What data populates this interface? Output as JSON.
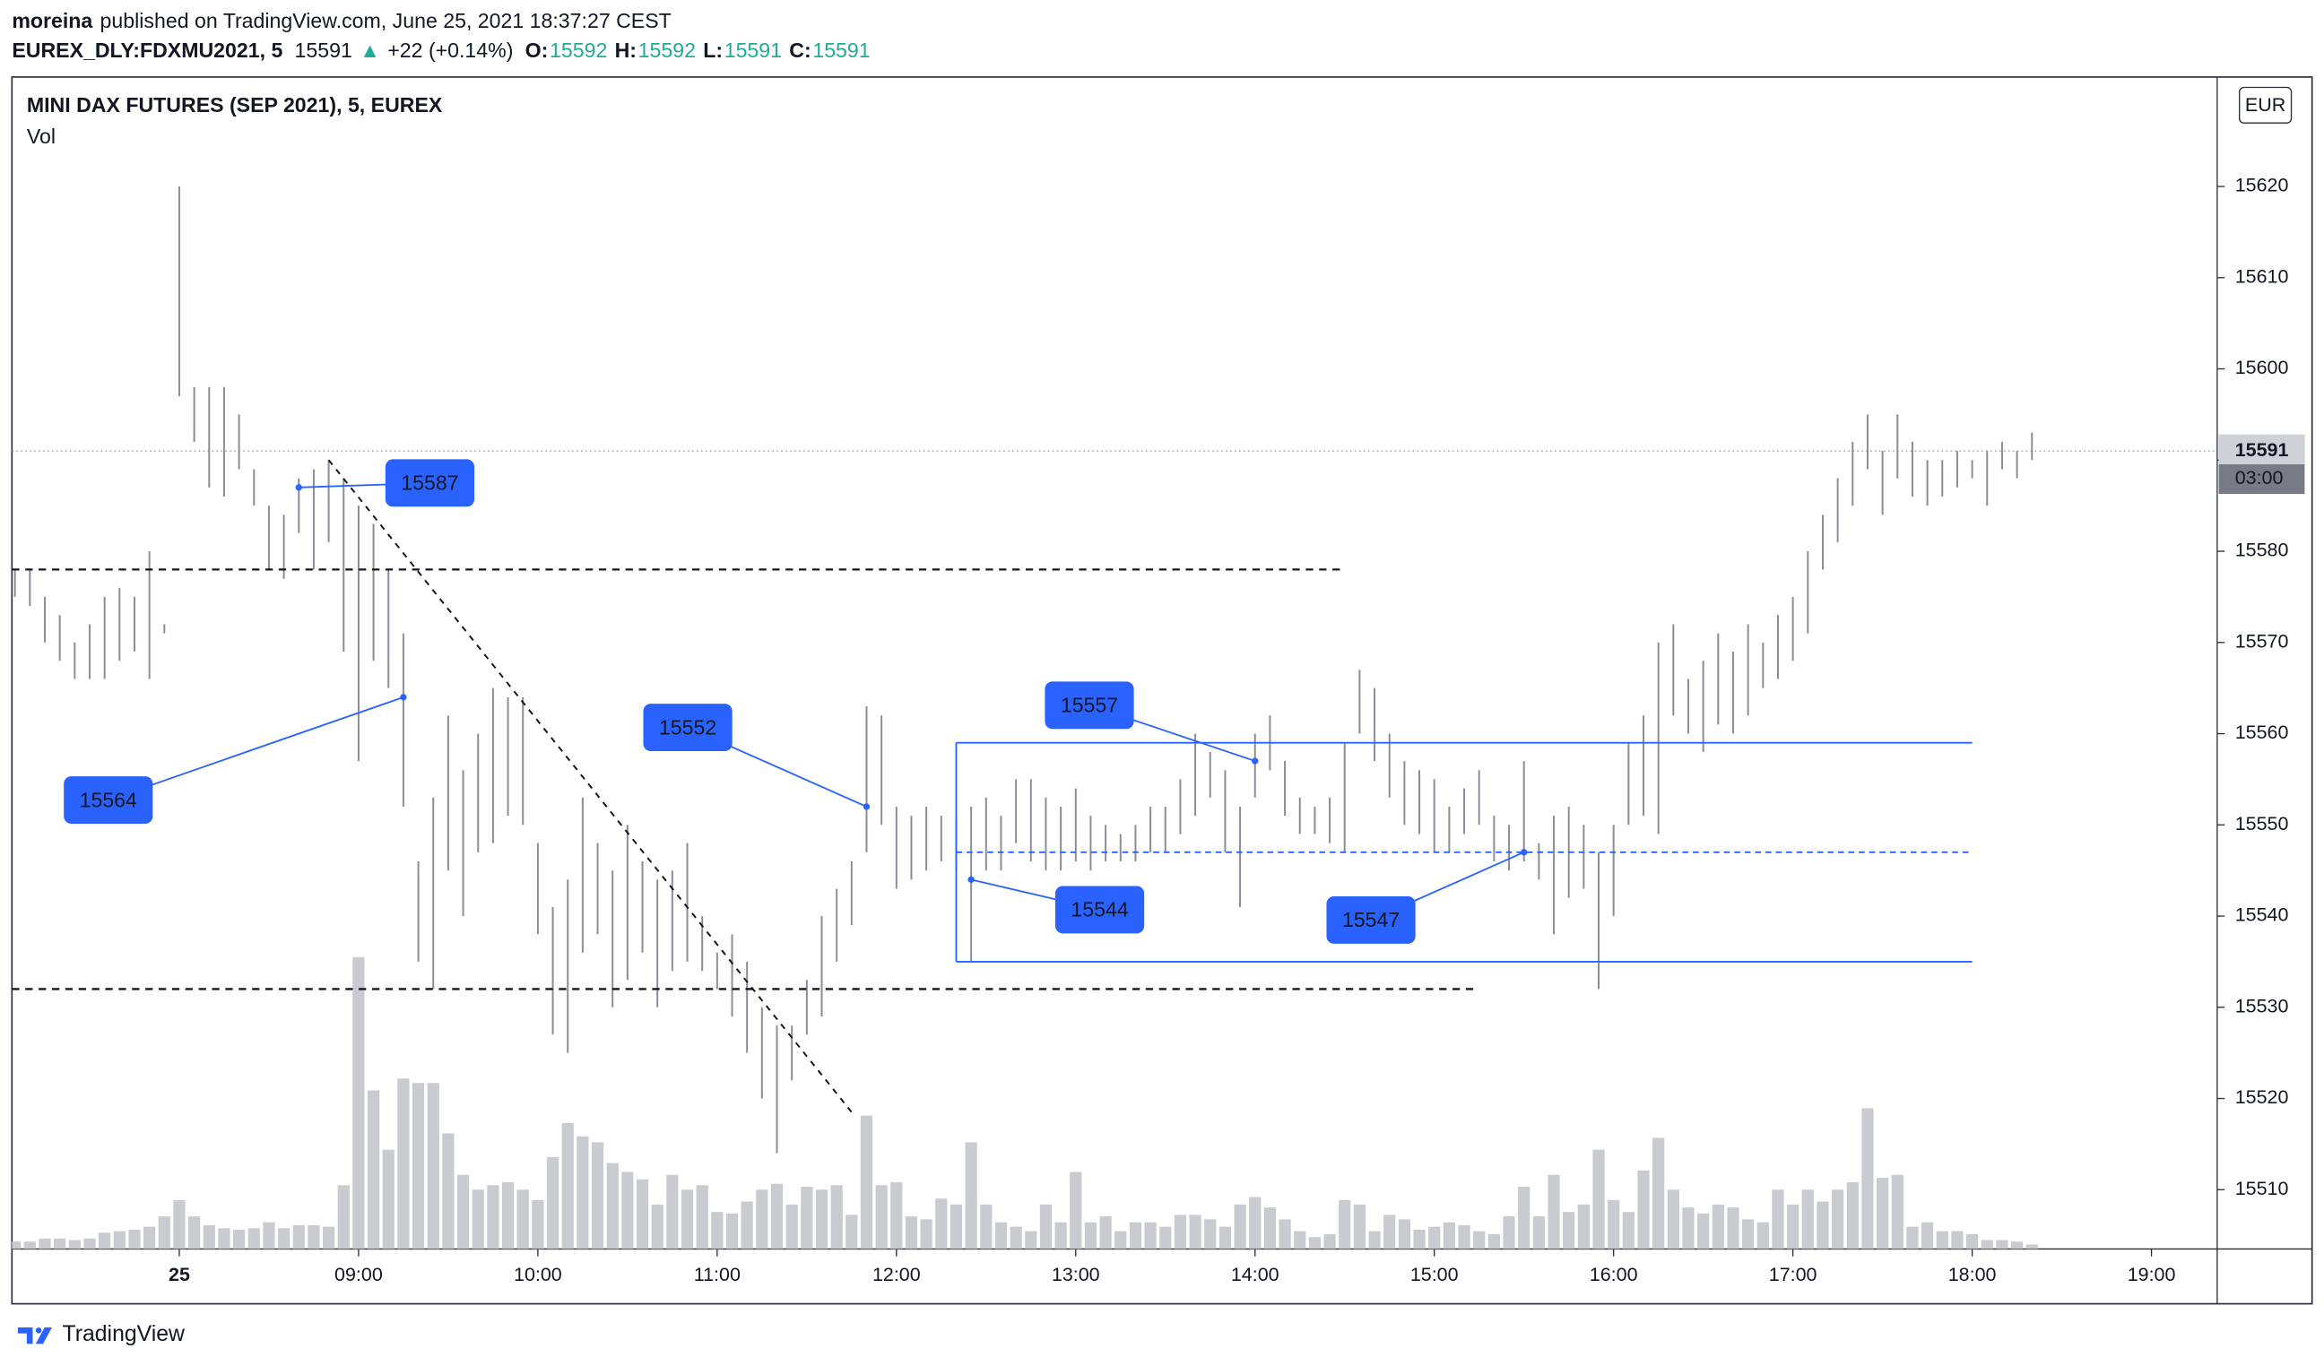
{
  "chart_data": {
    "type": "ohlc",
    "header": {
      "author": "moreina",
      "published": "published on TradingView.com, June 25, 2021 18:37:27 CEST"
    },
    "symbol": "EUREX_DLY:FDXMU2021, 5",
    "last": 15591,
    "change_arrow": "▲",
    "change": "+22 (+0.14%)",
    "ohlc_labels": [
      "O:",
      "H:",
      "L:",
      "C:"
    ],
    "ohlc_values": [
      15592,
      15592,
      15591,
      15591
    ],
    "title": "MINI DAX FUTURES (SEP 2021), 5, EUREX",
    "subtitle": "Vol",
    "currency": "EUR",
    "countdown": "03:00",
    "logo_text": "TradingView",
    "bar_color": "#8a8d96",
    "volume_color": "#c9cbd1",
    "drawing_color": "#2962ff",
    "up_color": "#22ab94",
    "x": [
      "07:05",
      "07:10",
      "07:15",
      "07:20",
      "07:25",
      "07:30",
      "07:35",
      "07:40",
      "07:45",
      "07:50",
      "07:55",
      "08:00",
      "08:05",
      "08:10",
      "08:15",
      "08:20",
      "08:25",
      "08:30",
      "08:35",
      "08:40",
      "08:45",
      "08:50",
      "08:55",
      "09:00",
      "09:05",
      "09:10",
      "09:15",
      "09:20",
      "09:25",
      "09:30",
      "09:35",
      "09:40",
      "09:45",
      "09:50",
      "09:55",
      "10:00",
      "10:05",
      "10:10",
      "10:15",
      "10:20",
      "10:25",
      "10:30",
      "10:35",
      "10:40",
      "10:45",
      "10:50",
      "10:55",
      "11:00",
      "11:05",
      "11:10",
      "11:15",
      "11:20",
      "11:25",
      "11:30",
      "11:35",
      "11:40",
      "11:45",
      "11:50",
      "11:55",
      "12:00",
      "12:05",
      "12:10",
      "12:15",
      "12:20",
      "12:25",
      "12:30",
      "12:35",
      "12:40",
      "12:45",
      "12:50",
      "12:55",
      "13:00",
      "13:05",
      "13:10",
      "13:15",
      "13:20",
      "13:25",
      "13:30",
      "13:35",
      "13:40",
      "13:45",
      "13:50",
      "13:55",
      "14:00",
      "14:05",
      "14:10",
      "14:15",
      "14:20",
      "14:25",
      "14:30",
      "14:35",
      "14:40",
      "14:45",
      "14:50",
      "14:55",
      "15:00",
      "15:05",
      "15:10",
      "15:15",
      "15:20",
      "15:25",
      "15:30",
      "15:35",
      "15:40",
      "15:45",
      "15:50",
      "15:55",
      "16:00",
      "16:05",
      "16:10",
      "16:15",
      "16:20",
      "16:25",
      "16:30",
      "16:35",
      "16:40",
      "16:45",
      "16:50",
      "16:55",
      "17:00",
      "17:05",
      "17:10",
      "17:15",
      "17:20",
      "17:25",
      "17:30",
      "17:35",
      "17:40",
      "17:45",
      "17:50",
      "17:55",
      "18:00",
      "18:05",
      "18:10",
      "18:15",
      "18:20"
    ],
    "high": [
      15578,
      15578,
      15575,
      15573,
      15570,
      15572,
      15575,
      15576,
      15575,
      15580,
      15572,
      15620,
      15598,
      15598,
      15598,
      15595,
      15589,
      15585,
      15584,
      15588,
      15589,
      15590,
      15588,
      15585,
      15583,
      15578,
      15571,
      15546,
      15553,
      15562,
      15556,
      15560,
      15565,
      15564,
      15564,
      15548,
      15541,
      15544,
      15553,
      15548,
      15545,
      15550,
      15546,
      15544,
      15545,
      15548,
      15540,
      15536,
      15538,
      15535,
      15530,
      15528,
      15528,
      15533,
      15540,
      15543,
      15546,
      15563,
      15562,
      15552,
      15551,
      15552,
      15551,
      15551,
      15552,
      15553,
      15551,
      15555,
      15555,
      15553,
      15552,
      15554,
      15551,
      15550,
      15549,
      15550,
      15552,
      15552,
      15555,
      15560,
      15558,
      15556,
      15552,
      15560,
      15562,
      15557,
      15553,
      15552,
      15553,
      15559,
      15567,
      15565,
      15560,
      15557,
      15556,
      15555,
      15552,
      15554,
      15556,
      15551,
      15550,
      15557,
      15548,
      15551,
      15552,
      15550,
      15547,
      15550,
      15559,
      15562,
      15570,
      15572,
      15566,
      15568,
      15571,
      15569,
      15572,
      15570,
      15573,
      15575,
      15580,
      15584,
      15588,
      15592,
      15595,
      15591,
      15595,
      15592,
      15590,
      15590,
      15591,
      15590,
      15591,
      15592,
      15591,
      15593
    ],
    "low": [
      15575,
      15574,
      15570,
      15568,
      15566,
      15566,
      15566,
      15568,
      15569,
      15566,
      15571,
      15597,
      15592,
      15587,
      15586,
      15589,
      15585,
      15578,
      15577,
      15582,
      15578,
      15581,
      15569,
      15557,
      15568,
      15565,
      15552,
      15535,
      15532,
      15545,
      15540,
      15547,
      15548,
      15551,
      15550,
      15538,
      15527,
      15525,
      15536,
      15538,
      15530,
      15533,
      15536,
      15530,
      15534,
      15535,
      15534,
      15532,
      15529,
      15525,
      15520,
      15514,
      15522,
      15527,
      15529,
      15535,
      15539,
      15547,
      15550,
      15543,
      15544,
      15545,
      15546,
      15545,
      15535,
      15545,
      15545,
      15548,
      15546,
      15545,
      15545,
      15546,
      15545,
      15546,
      15546,
      15546,
      15547,
      15547,
      15549,
      15551,
      15553,
      15547,
      15541,
      15553,
      15556,
      15551,
      15549,
      15549,
      15548,
      15547,
      15560,
      15557,
      15553,
      15550,
      15549,
      15547,
      15547,
      15549,
      15550,
      15546,
      15545,
      15546,
      15544,
      15538,
      15542,
      15543,
      15532,
      15540,
      15550,
      15551,
      15549,
      15562,
      15560,
      15558,
      15561,
      15560,
      15562,
      15565,
      15566,
      15568,
      15571,
      15578,
      15581,
      15585,
      15589,
      15584,
      15588,
      15586,
      15585,
      15586,
      15587,
      15588,
      15585,
      15589,
      15588,
      15590
    ],
    "volume": [
      5,
      5,
      7,
      7,
      6,
      7,
      11,
      12,
      13,
      15,
      22,
      33,
      22,
      16,
      14,
      13,
      14,
      18,
      14,
      16,
      16,
      15,
      43,
      197,
      107,
      67,
      115,
      112,
      112,
      78,
      50,
      40,
      43,
      45,
      40,
      33,
      62,
      85,
      76,
      72,
      58,
      52,
      47,
      30,
      50,
      40,
      43,
      25,
      24,
      32,
      40,
      44,
      30,
      42,
      40,
      43,
      23,
      90,
      43,
      45,
      22,
      20,
      34,
      30,
      72,
      30,
      18,
      15,
      12,
      30,
      18,
      52,
      18,
      22,
      12,
      18,
      18,
      15,
      23,
      23,
      20,
      15,
      30,
      35,
      28,
      20,
      12,
      8,
      10,
      33,
      30,
      12,
      23,
      20,
      13,
      15,
      18,
      16,
      12,
      10,
      22,
      42,
      22,
      50,
      25,
      30,
      67,
      33,
      25,
      53,
      75,
      40,
      28,
      24,
      30,
      28,
      20,
      18,
      40,
      30,
      40,
      32,
      40,
      45,
      95,
      48,
      50,
      15,
      18,
      12,
      12,
      10,
      6,
      6,
      5,
      3
    ],
    "xlim": [
      "07:04",
      "19:22"
    ],
    "ylim": [
      15503.5,
      15632
    ],
    "xticks": [
      {
        "value": "08:00",
        "label": "25"
      },
      "09:00",
      "10:00",
      "11:00",
      "12:00",
      "13:00",
      "14:00",
      "15:00",
      "16:00",
      "17:00",
      "18:00",
      "19:00"
    ],
    "yticks": [
      15510,
      15520,
      15530,
      15540,
      15550,
      15560,
      15570,
      15580,
      15590,
      15600,
      15610,
      15620
    ],
    "hlines": [
      {
        "price": 15578,
        "to": "14:30"
      },
      {
        "price": 15532,
        "to": "15:15"
      }
    ],
    "trendline": {
      "from": [
        "08:50",
        15590
      ],
      "to": [
        "11:45",
        15518.5
      ]
    },
    "rectangle": {
      "from": "12:20",
      "to": "18:00",
      "top": 15559,
      "bottom": 15535,
      "mid": 15547
    },
    "callouts": [
      {
        "label": 15587,
        "time": "08:40"
      },
      {
        "label": 15564,
        "time": "09:15"
      },
      {
        "label": 15552,
        "time": "11:50"
      },
      {
        "label": 15557,
        "time": "14:00"
      },
      {
        "label": 15544,
        "time": "12:25"
      },
      {
        "label": 15547,
        "time": "15:30"
      }
    ]
  }
}
